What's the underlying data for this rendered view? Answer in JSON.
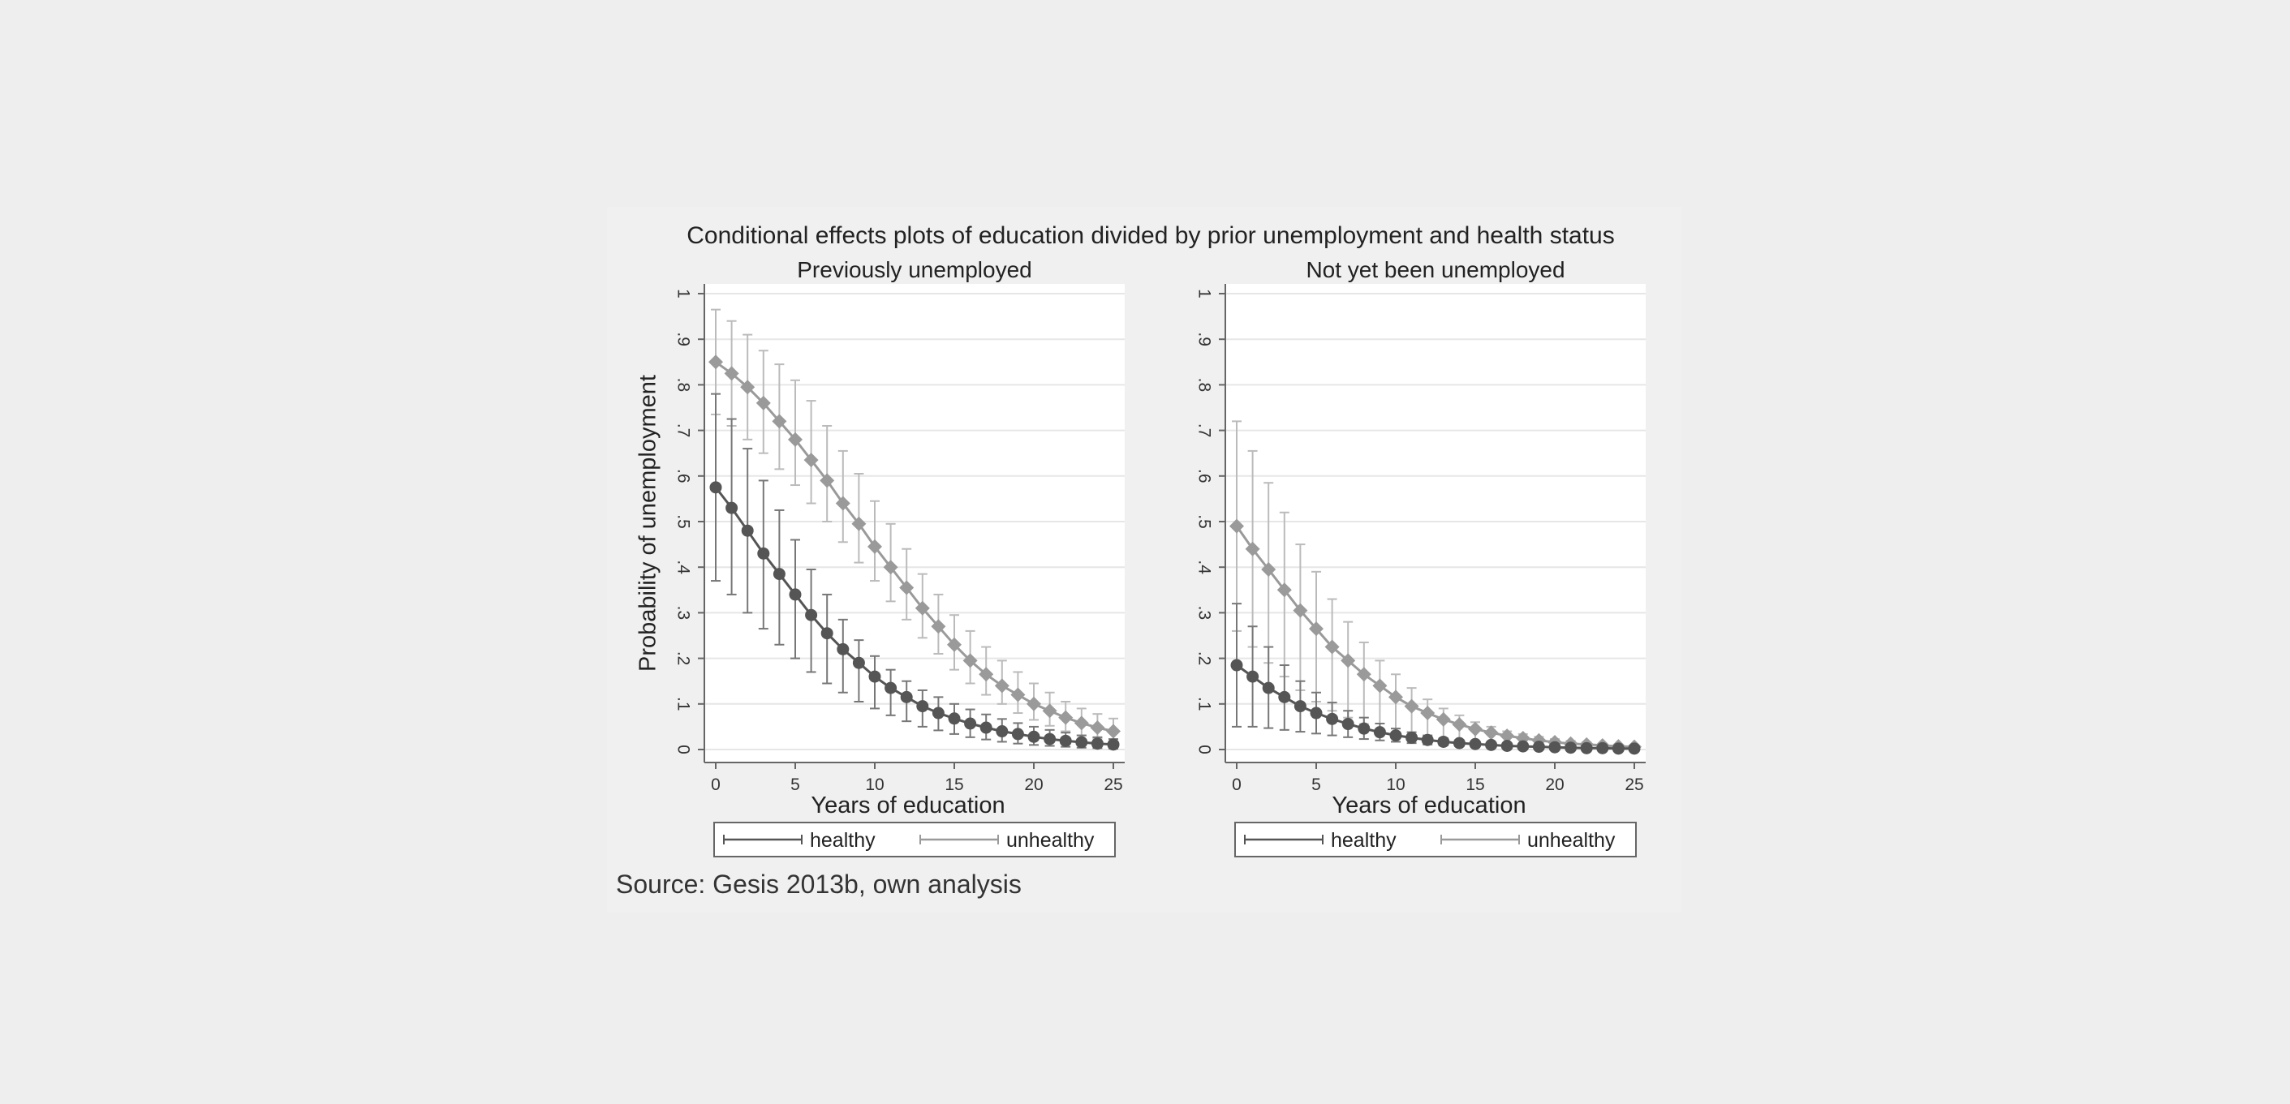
{
  "figure": {
    "title": "Conditional effects plots of education divided by prior unemployment and health status",
    "source": "Source: Gesis 2013b, own analysis"
  },
  "colors": {
    "page_background": "#eeeeee",
    "figure_background": "#f0f0f0",
    "plot_background": "#ffffff",
    "grid": "#e6e6e6",
    "healthy": "#555555",
    "unhealthy": "#9a9a9a",
    "healthy_ci": "#777777",
    "unhealthy_ci": "#bbbbbb"
  },
  "chart_data": [
    {
      "type": "line",
      "title": "Previously unemployed",
      "xlabel": "Years of education",
      "ylabel": "Probability of unemployment",
      "xlim": [
        0,
        25
      ],
      "ylim": [
        0,
        1
      ],
      "xticks": [
        0,
        5,
        10,
        15,
        20,
        25
      ],
      "yticks": [
        0,
        0.1,
        0.2,
        0.3,
        0.4,
        0.5,
        0.6,
        0.7,
        0.8,
        0.9,
        1
      ],
      "ytick_labels": [
        "0",
        ".1",
        ".2",
        ".3",
        ".4",
        ".5",
        ".6",
        ".7",
        ".8",
        ".9",
        "1"
      ],
      "grid": true,
      "legend_position": "bottom",
      "x": [
        0,
        1,
        2,
        3,
        4,
        5,
        6,
        7,
        8,
        9,
        10,
        11,
        12,
        13,
        14,
        15,
        16,
        17,
        18,
        19,
        20,
        21,
        22,
        23,
        24,
        25
      ],
      "series": [
        {
          "name": "healthy",
          "marker": "circle",
          "values": [
            0.575,
            0.53,
            0.48,
            0.43,
            0.385,
            0.34,
            0.295,
            0.255,
            0.22,
            0.19,
            0.16,
            0.135,
            0.115,
            0.095,
            0.08,
            0.068,
            0.057,
            0.048,
            0.04,
            0.034,
            0.028,
            0.023,
            0.019,
            0.016,
            0.013,
            0.011
          ],
          "lower": [
            0.37,
            0.34,
            0.3,
            0.265,
            0.23,
            0.2,
            0.17,
            0.145,
            0.125,
            0.105,
            0.09,
            0.075,
            0.062,
            0.05,
            0.042,
            0.034,
            0.027,
            0.022,
            0.017,
            0.013,
            0.01,
            0.008,
            0.006,
            0.004,
            0.003,
            0.002
          ],
          "upper": [
            0.78,
            0.725,
            0.66,
            0.59,
            0.525,
            0.46,
            0.395,
            0.34,
            0.285,
            0.24,
            0.205,
            0.175,
            0.15,
            0.13,
            0.115,
            0.1,
            0.088,
            0.077,
            0.067,
            0.058,
            0.05,
            0.043,
            0.037,
            0.031,
            0.027,
            0.023
          ]
        },
        {
          "name": "unhealthy",
          "marker": "diamond",
          "values": [
            0.85,
            0.825,
            0.795,
            0.76,
            0.72,
            0.68,
            0.635,
            0.59,
            0.54,
            0.495,
            0.445,
            0.4,
            0.355,
            0.31,
            0.27,
            0.23,
            0.195,
            0.165,
            0.14,
            0.12,
            0.1,
            0.085,
            0.07,
            0.058,
            0.048,
            0.04
          ],
          "lower": [
            0.735,
            0.71,
            0.68,
            0.65,
            0.615,
            0.58,
            0.54,
            0.5,
            0.455,
            0.41,
            0.37,
            0.325,
            0.285,
            0.245,
            0.21,
            0.175,
            0.145,
            0.12,
            0.1,
            0.08,
            0.065,
            0.052,
            0.04,
            0.031,
            0.024,
            0.018
          ],
          "upper": [
            0.965,
            0.94,
            0.91,
            0.875,
            0.845,
            0.81,
            0.765,
            0.71,
            0.655,
            0.605,
            0.545,
            0.495,
            0.44,
            0.385,
            0.34,
            0.295,
            0.26,
            0.225,
            0.195,
            0.17,
            0.145,
            0.125,
            0.105,
            0.09,
            0.078,
            0.068
          ]
        }
      ]
    },
    {
      "type": "line",
      "title": "Not yet been unemployed",
      "xlabel": "Years of education",
      "ylabel": "",
      "xlim": [
        0,
        25
      ],
      "ylim": [
        0,
        1
      ],
      "xticks": [
        0,
        5,
        10,
        15,
        20,
        25
      ],
      "yticks": [
        0,
        0.1,
        0.2,
        0.3,
        0.4,
        0.5,
        0.6,
        0.7,
        0.8,
        0.9,
        1
      ],
      "ytick_labels": [
        "0",
        ".1",
        ".2",
        ".3",
        ".4",
        ".5",
        ".6",
        ".7",
        ".8",
        ".9",
        "1"
      ],
      "grid": true,
      "legend_position": "bottom",
      "x": [
        0,
        1,
        2,
        3,
        4,
        5,
        6,
        7,
        8,
        9,
        10,
        11,
        12,
        13,
        14,
        15,
        16,
        17,
        18,
        19,
        20,
        21,
        22,
        23,
        24,
        25
      ],
      "series": [
        {
          "name": "healthy",
          "marker": "circle",
          "values": [
            0.185,
            0.16,
            0.135,
            0.115,
            0.095,
            0.08,
            0.067,
            0.056,
            0.046,
            0.038,
            0.031,
            0.026,
            0.021,
            0.017,
            0.014,
            0.012,
            0.01,
            0.008,
            0.007,
            0.006,
            0.005,
            0.004,
            0.003,
            0.003,
            0.002,
            0.002
          ],
          "lower": [
            0.05,
            0.05,
            0.047,
            0.043,
            0.039,
            0.035,
            0.031,
            0.027,
            0.023,
            0.02,
            0.017,
            0.014,
            0.011,
            0.009,
            0.007,
            0.006,
            0.005,
            0.004,
            0.003,
            0.002,
            0.002,
            0.001,
            0.001,
            0.001,
            0.001,
            0.001
          ],
          "upper": [
            0.32,
            0.27,
            0.225,
            0.185,
            0.15,
            0.125,
            0.103,
            0.085,
            0.07,
            0.057,
            0.046,
            0.038,
            0.031,
            0.025,
            0.021,
            0.018,
            0.015,
            0.012,
            0.01,
            0.009,
            0.008,
            0.007,
            0.006,
            0.005,
            0.004,
            0.004
          ]
        },
        {
          "name": "unhealthy",
          "marker": "diamond",
          "values": [
            0.49,
            0.44,
            0.395,
            0.35,
            0.305,
            0.265,
            0.225,
            0.195,
            0.165,
            0.14,
            0.115,
            0.095,
            0.08,
            0.066,
            0.055,
            0.045,
            0.037,
            0.03,
            0.025,
            0.02,
            0.016,
            0.013,
            0.011,
            0.009,
            0.007,
            0.006
          ],
          "lower": [
            0.26,
            0.225,
            0.19,
            0.16,
            0.13,
            0.105,
            0.085,
            0.07,
            0.056,
            0.045,
            0.035,
            0.028,
            0.022,
            0.017,
            0.013,
            0.01,
            0.008,
            0.006,
            0.005,
            0.004,
            0.003,
            0.002,
            0.002,
            0.001,
            0.001,
            0.001
          ],
          "upper": [
            0.72,
            0.655,
            0.585,
            0.52,
            0.45,
            0.39,
            0.33,
            0.28,
            0.235,
            0.195,
            0.165,
            0.135,
            0.11,
            0.09,
            0.075,
            0.06,
            0.05,
            0.04,
            0.034,
            0.028,
            0.023,
            0.019,
            0.016,
            0.013,
            0.011,
            0.009
          ]
        }
      ]
    }
  ]
}
